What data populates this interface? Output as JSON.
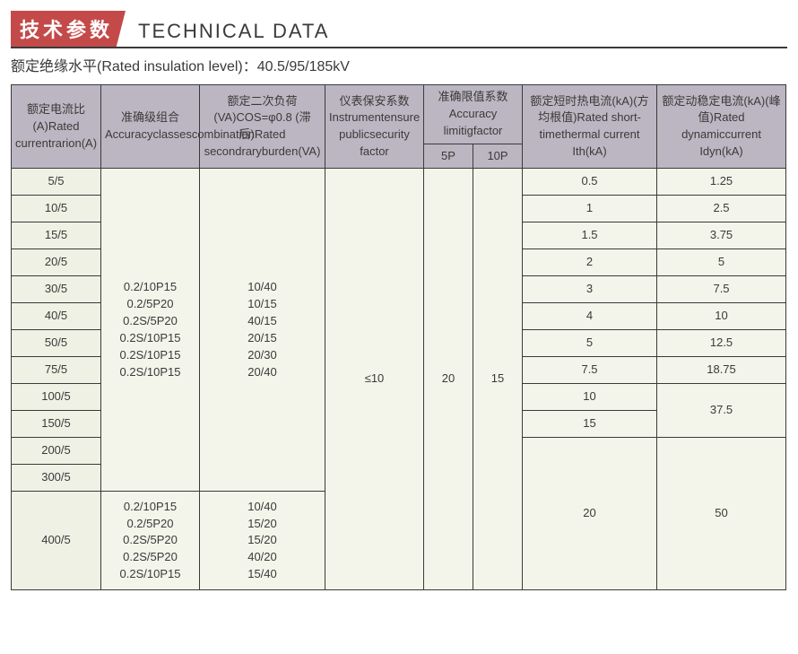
{
  "title": {
    "zh": "技术参数",
    "en": "TECHNICAL DATA"
  },
  "subtitle": "额定绝缘水平(Rated insulation level)：40.5/95/185kV",
  "headers": {
    "ratio": "额定电流比(A)\nRated current\nrarion(A)",
    "accuracy": "准确级组合\nAccuracy\nclasses\ncombination",
    "burden": "额定二次负荷(VA)\nCOS=φ0.8 (滞后)\nRated secondrary\nburden(VA)",
    "factor": "仪表保安\n系数\nInstrument\nensure public\nsecurity factor",
    "limit_group": "准确限值系数\nAccuracy limitig\nfactor",
    "p5": "5P",
    "p10": "10P",
    "ith": "额定短时热电流(kA)\n(方均根值)\nRated short-time\nthermal current Ith(kA)",
    "idyn": "额定动稳定电流(kA)\n(峰值)\nRated dynamic\ncurrent Idyn(kA)"
  },
  "accuracy_block1": [
    "0.2/10P15",
    "0.2/5P20",
    "0.2S/5P20",
    "0.2S/10P15",
    "0.2S/10P15",
    "0.2S/10P15"
  ],
  "burden_block1": [
    "10/40",
    "10/15",
    "40/15",
    "20/15",
    "20/30",
    "20/40"
  ],
  "accuracy_block2": [
    "0.2/10P15",
    "0.2/5P20",
    "0.2S/5P20",
    "0.2S/5P20",
    "0.2S/10P15"
  ],
  "burden_block2": [
    "10/40",
    "15/20",
    "15/20",
    "40/20",
    "15/40"
  ],
  "factor_val": "≤10",
  "p5_val": "20",
  "p10_val": "15",
  "rows": [
    {
      "ratio": "5/5",
      "ith": "0.5",
      "idyn": "1.25"
    },
    {
      "ratio": "10/5",
      "ith": "1",
      "idyn": "2.5"
    },
    {
      "ratio": "15/5",
      "ith": "1.5",
      "idyn": "3.75"
    },
    {
      "ratio": "20/5",
      "ith": "2",
      "idyn": "5"
    },
    {
      "ratio": "30/5",
      "ith": "3",
      "idyn": "7.5"
    },
    {
      "ratio": "40/5",
      "ith": "4",
      "idyn": "10"
    },
    {
      "ratio": "50/5",
      "ith": "5",
      "idyn": "12.5"
    },
    {
      "ratio": "75/5",
      "ith": "7.5",
      "idyn": "18.75"
    },
    {
      "ratio": "100/5",
      "ith": "10",
      "idyn": "37.5"
    },
    {
      "ratio": "150/5",
      "ith": "15"
    },
    {
      "ratio": "200/5",
      "ith": "20",
      "idyn": "50"
    },
    {
      "ratio": "300/5"
    },
    {
      "ratio": "400/5"
    }
  ],
  "colors": {
    "badge_bg": "#c44a4a",
    "header_bg": "#bcb6c2",
    "ratio_bg": "#eff1e5",
    "cell_bg": "#f3f5ea",
    "border": "#3a3a3a"
  }
}
